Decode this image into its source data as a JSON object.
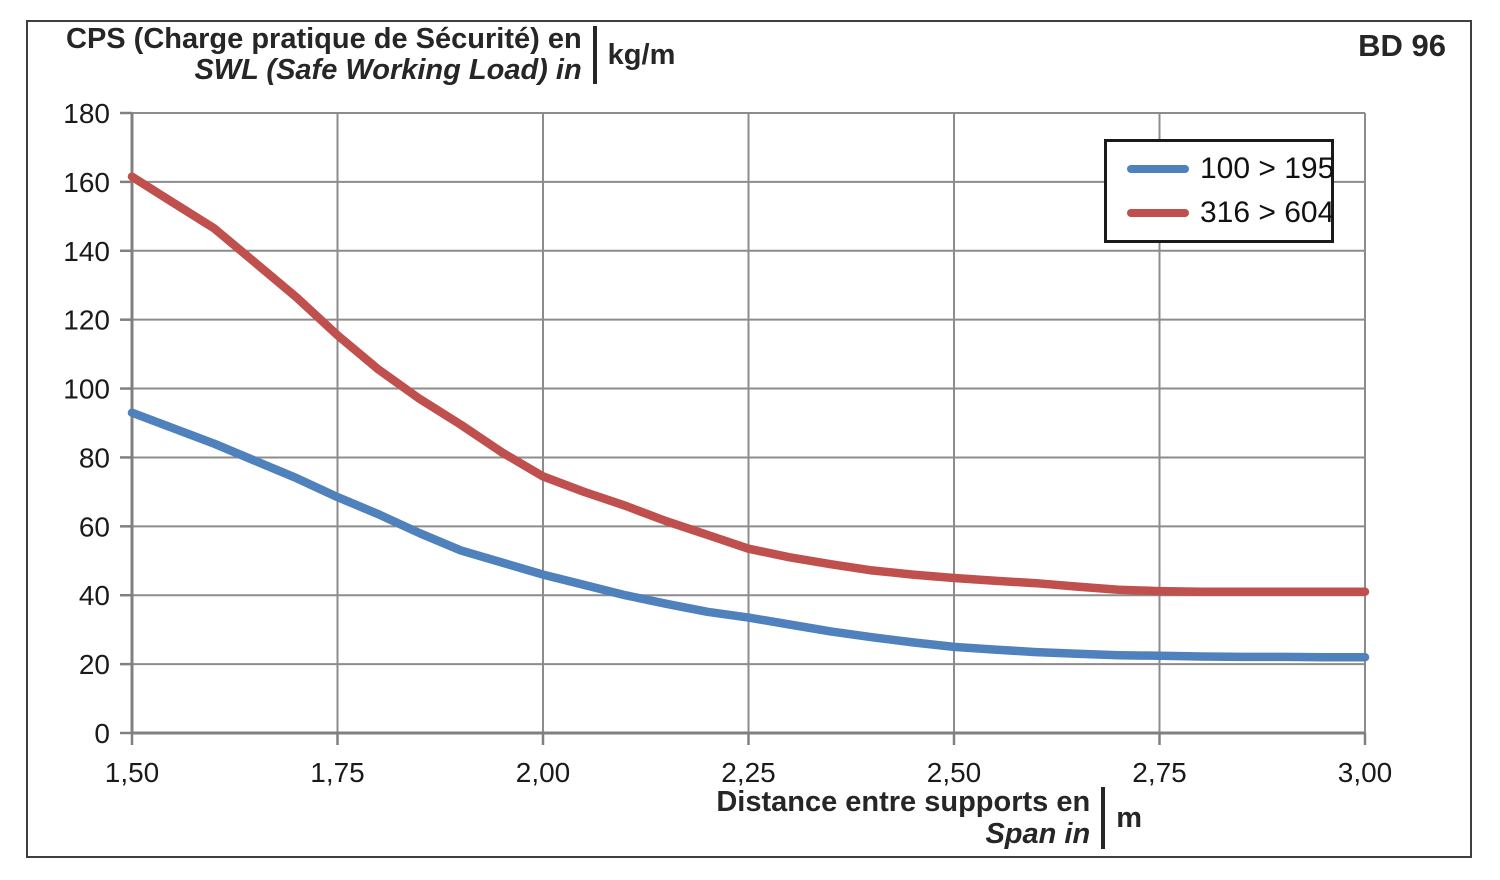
{
  "title": {
    "line1": "CPS (Charge pratique de Sécurité) en",
    "line2": "SWL (Safe Working Load) in",
    "unit": "kg/m"
  },
  "badge": {
    "text": "BD 96"
  },
  "x_axis_title": {
    "line1": "Distance entre supports en",
    "line2": "Span in",
    "unit": "m"
  },
  "legend": {
    "position": "top-right",
    "items": [
      {
        "label": "100 > 195",
        "color": "#4F81BD"
      },
      {
        "label": "316 > 604",
        "color": "#C0504D"
      }
    ]
  },
  "colors": {
    "grid": "#8C8C8C",
    "axis": "#808080",
    "tick_text": "#1A1A1A",
    "title_text": "#262626",
    "series_blue": "#4F81BD",
    "series_red": "#C0504D"
  },
  "chart_data": {
    "type": "line",
    "title": "CPS (Charge pratique de Sécurité) / SWL (Safe Working Load) in kg/m",
    "xlabel": "Distance entre supports en / Span in (m)",
    "ylabel": "CPS / SWL (kg/m)",
    "grid": true,
    "legend_position": "top-right",
    "xlim": [
      1.5,
      3.0
    ],
    "ylim": [
      0,
      180
    ],
    "x_tick_values": [
      1.5,
      1.75,
      2.0,
      2.25,
      2.5,
      2.75,
      3.0
    ],
    "x_tick_labels": [
      "1,50",
      "1,75",
      "2,00",
      "2,25",
      "2,50",
      "2,75",
      "3,00"
    ],
    "y_tick_values": [
      0,
      20,
      40,
      60,
      80,
      100,
      120,
      140,
      160,
      180
    ],
    "y_tick_labels": [
      "0",
      "20",
      "40",
      "60",
      "80",
      "100",
      "120",
      "140",
      "160",
      "180"
    ],
    "x": [
      1.5,
      1.55,
      1.6,
      1.65,
      1.7,
      1.75,
      1.8,
      1.85,
      1.9,
      1.95,
      2.0,
      2.05,
      2.1,
      2.15,
      2.2,
      2.25,
      2.3,
      2.35,
      2.4,
      2.45,
      2.5,
      2.55,
      2.6,
      2.65,
      2.7,
      2.75,
      2.8,
      2.85,
      2.9,
      2.95,
      3.0
    ],
    "series": [
      {
        "name": "100 > 195",
        "color": "#4F81BD",
        "values": [
          93,
          88.5,
          84,
          79,
          74,
          68.5,
          63.5,
          58,
          53,
          49.5,
          46,
          43,
          40,
          37.5,
          35.2,
          33.5,
          31.5,
          29.5,
          27.8,
          26.3,
          25,
          24.2,
          23.5,
          23,
          22.6,
          22.4,
          22.2,
          22.1,
          22.1,
          22,
          22
        ]
      },
      {
        "name": "316 > 604",
        "color": "#C0504D",
        "values": [
          161.5,
          154,
          146.5,
          136.5,
          126.5,
          115.5,
          105.5,
          97,
          89.5,
          81.5,
          74.5,
          70,
          66,
          61.5,
          57.5,
          53.5,
          51,
          49,
          47.2,
          46,
          45,
          44.2,
          43.5,
          42.5,
          41.6,
          41.2,
          41,
          41,
          41,
          41,
          41
        ]
      }
    ]
  }
}
